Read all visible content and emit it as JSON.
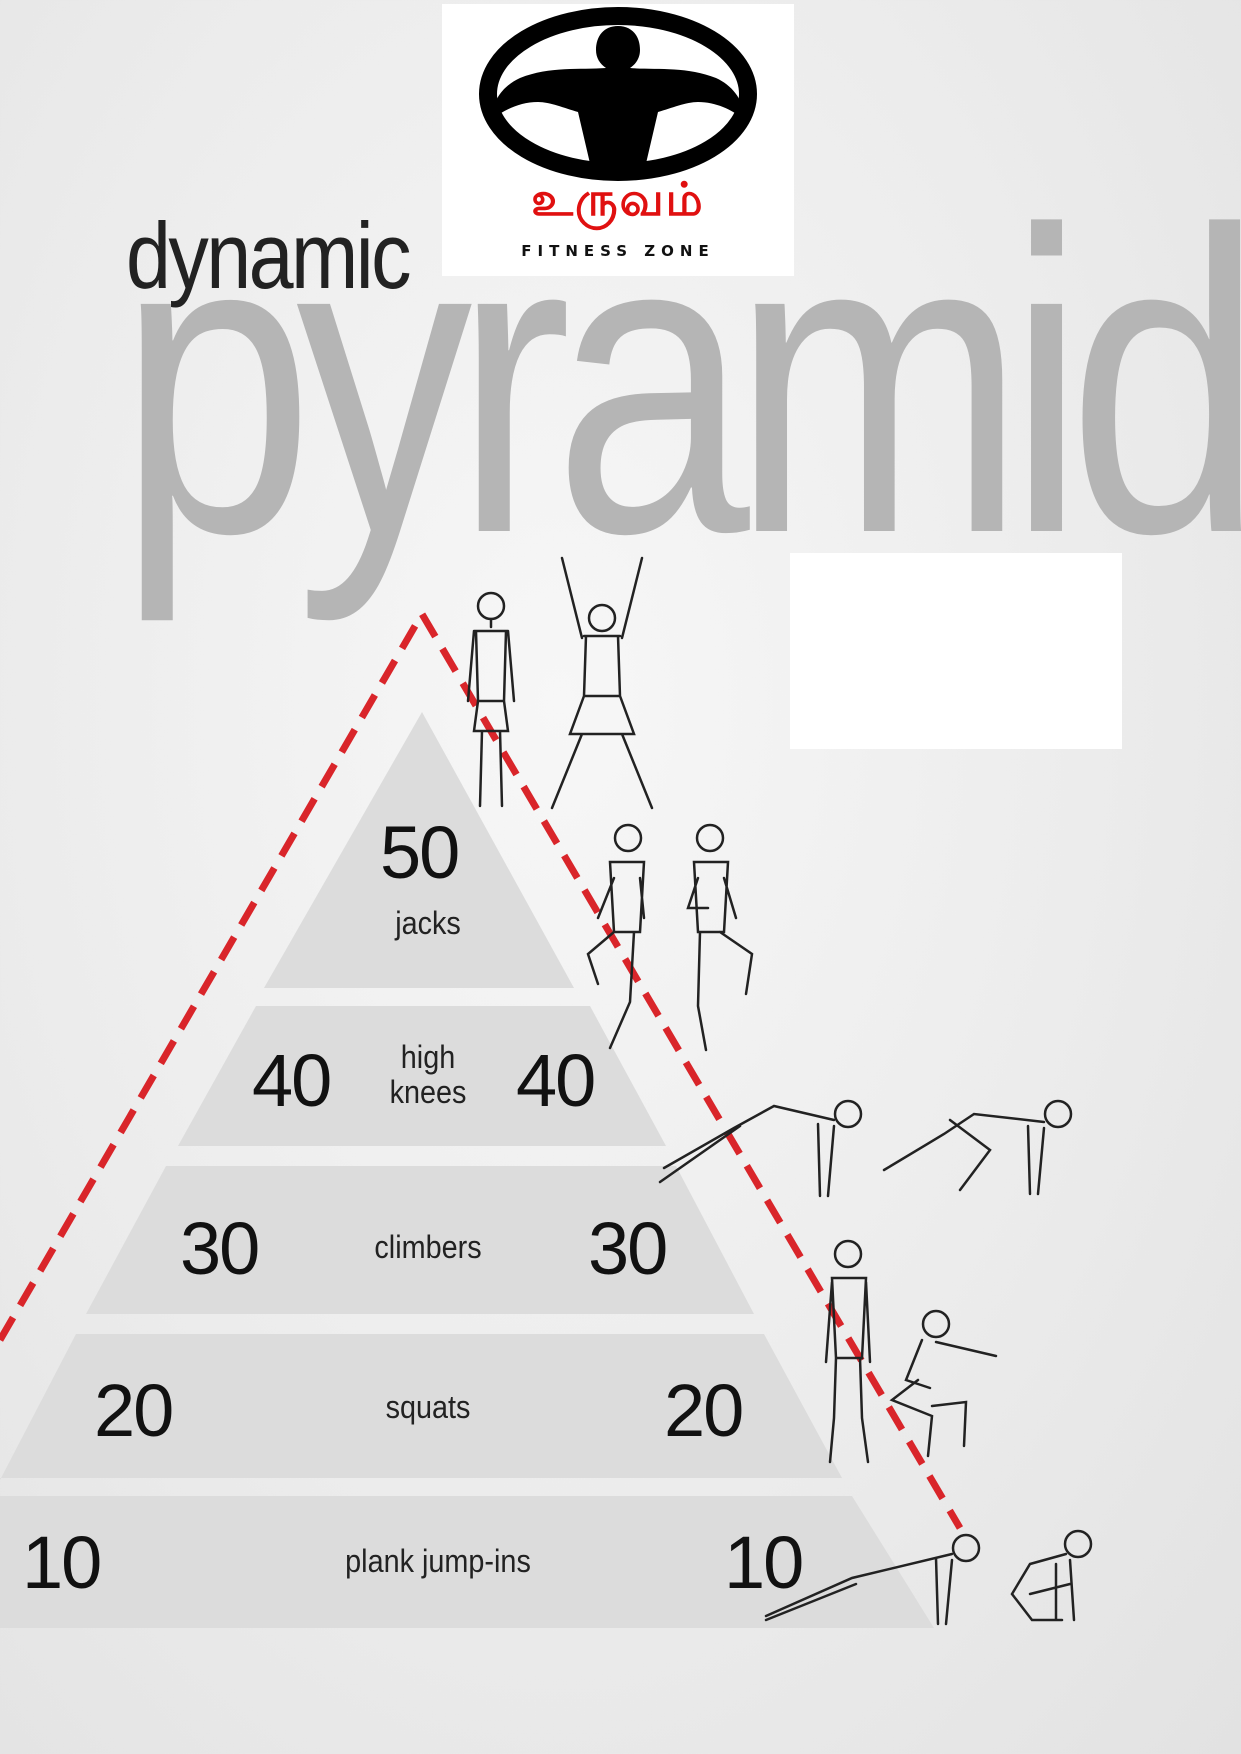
{
  "logo": {
    "brand_tamil": "உருவம்",
    "brand_sub": "FITNESS ZONE",
    "icon": "bodybuilder-silhouette-icon",
    "accent_color": "#e01010"
  },
  "title": {
    "small": "dynamic",
    "large": "pyramid"
  },
  "tiers": [
    {
      "left": "50",
      "exercise": "jacks",
      "right": ""
    },
    {
      "left": "40",
      "exercise": "high knees",
      "right": "40"
    },
    {
      "left": "30",
      "exercise": "climbers",
      "right": "30"
    },
    {
      "left": "20",
      "exercise": "squats",
      "right": "20"
    },
    {
      "left": "10",
      "exercise": "plank jump-ins",
      "right": "10"
    }
  ],
  "colors": {
    "dashed_line": "#d9252a",
    "tier_fill": "#dcdcdc",
    "title_gray": "#b5b5b5"
  },
  "figures": [
    "standing-man-icon",
    "jumping-jack-man-icon",
    "high-knee-man-icon",
    "high-knee-man-icon",
    "plank-man-icon",
    "climber-man-icon",
    "standing-man-icon",
    "squat-man-icon",
    "plank-man-icon",
    "crouch-man-icon"
  ]
}
